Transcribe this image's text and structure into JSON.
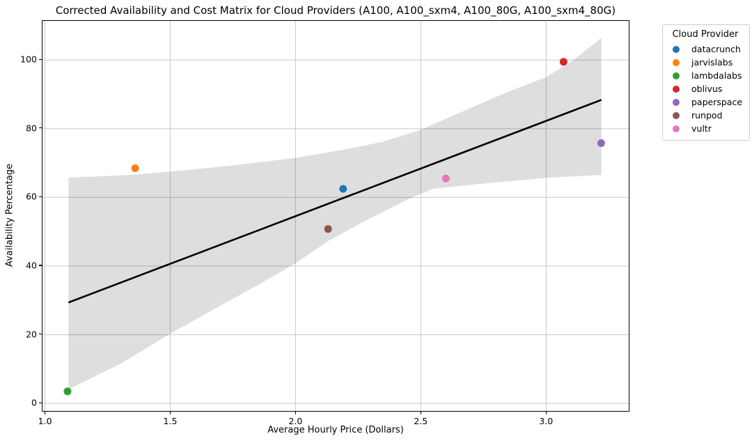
{
  "figure": {
    "title": "Corrected Availability and Cost Matrix for Cloud Providers (A100, A100_sxm4, A100_80G, A100_sxm4_80G)"
  },
  "chart_data": {
    "type": "scatter",
    "title": "Corrected Availability and Cost Matrix for Cloud Providers (A100, A100_sxm4, A100_80G, A100_sxm4_80G)",
    "xlabel": "Average Hourly Price (Dollars)",
    "ylabel": "Availability Percentage",
    "xlim": [
      0.99,
      3.33
    ],
    "ylim": [
      -2.2,
      111.4
    ],
    "xticks": [
      "1.0",
      "1.5",
      "2.0",
      "2.5",
      "3.0"
    ],
    "yticks": [
      "0",
      "20",
      "40",
      "60",
      "80",
      "100"
    ],
    "grid": true,
    "grid_color": "#c9c9c9",
    "legend_title": "Cloud Provider",
    "legend_position": "upper right, outside axes",
    "series": [
      {
        "name": "datacrunch",
        "color": "#1f77b4",
        "points": [
          [
            2.19,
            62.5
          ]
        ]
      },
      {
        "name": "jarvislabs",
        "color": "#ff7f0e",
        "points": [
          [
            1.36,
            68.5
          ]
        ]
      },
      {
        "name": "lambdalabs",
        "color": "#2ca02c",
        "points": [
          [
            1.09,
            3.5
          ]
        ]
      },
      {
        "name": "oblivus",
        "color": "#d62728",
        "points": [
          [
            3.07,
            99.5
          ]
        ]
      },
      {
        "name": "paperspace",
        "color": "#9467bd",
        "points": [
          [
            3.22,
            75.8
          ]
        ]
      },
      {
        "name": "runpod",
        "color": "#8c564b",
        "points": [
          [
            2.13,
            50.8
          ]
        ]
      },
      {
        "name": "vultr",
        "color": "#e377c2",
        "points": [
          [
            2.6,
            65.5
          ]
        ]
      }
    ],
    "marker_radius": 5.5,
    "regression_line": {
      "color": "#000000",
      "width": 2.6,
      "from": [
        1.094,
        29.4
      ],
      "to": [
        3.221,
        88.4
      ]
    },
    "confidence_band": {
      "fill_color": "#000000",
      "fill_opacity": 0.13,
      "top": [
        [
          1.094,
          65.8
        ],
        [
          1.25,
          66.2
        ],
        [
          1.36,
          66.6
        ],
        [
          1.5,
          67.5
        ],
        [
          1.75,
          69.3
        ],
        [
          2.0,
          71.5
        ],
        [
          2.2,
          74.0
        ],
        [
          2.35,
          76.2
        ],
        [
          2.5,
          79.7
        ],
        [
          2.65,
          84.5
        ],
        [
          2.85,
          90.8
        ],
        [
          3.0,
          95.0
        ],
        [
          3.1,
          99.5
        ],
        [
          3.221,
          106.5
        ]
      ],
      "bottom": [
        [
          1.094,
          4.1
        ],
        [
          1.3,
          11.5
        ],
        [
          1.5,
          20.3
        ],
        [
          1.7,
          28.5
        ],
        [
          1.85,
          34.5
        ],
        [
          2.0,
          40.8
        ],
        [
          2.13,
          47.3
        ],
        [
          2.3,
          54.0
        ],
        [
          2.45,
          59.5
        ],
        [
          2.55,
          62.5
        ],
        [
          2.73,
          63.9
        ],
        [
          3.0,
          65.7
        ],
        [
          3.221,
          66.5
        ]
      ]
    }
  }
}
